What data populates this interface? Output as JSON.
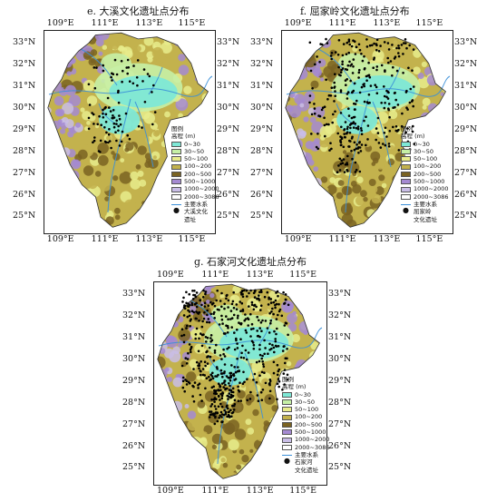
{
  "panels": [
    {
      "id": "e",
      "title": "e. 大溪文化遗址点分布",
      "site_label_lines": [
        "大溪文化",
        "遗址"
      ],
      "site_count": 95,
      "site_region": "central-west"
    },
    {
      "id": "f",
      "title": "f. 屈家岭文化遗址点分布",
      "site_label_lines": [
        "屈家岭",
        "文化遗址"
      ],
      "site_count": 330,
      "site_region": "north-central"
    },
    {
      "id": "g",
      "title": "g. 石家河文化遗址点分布",
      "site_label_lines": [
        "石家河",
        "文化遗址"
      ],
      "site_count": 560,
      "site_region": "north-central"
    }
  ],
  "lon_labels": [
    "109°E",
    "111°E",
    "113°E",
    "115°E"
  ],
  "lat_labels": [
    "33°N",
    "32°N",
    "31°N",
    "30°N",
    "29°N",
    "28°N",
    "27°N",
    "26°N",
    "25°N"
  ],
  "legend": {
    "title": "图例",
    "elevation_title": "高程 (m)",
    "classes": [
      {
        "label": "0~30",
        "color": "#7ee8d6"
      },
      {
        "label": "30~50",
        "color": "#c6f0a6"
      },
      {
        "label": "50~100",
        "color": "#e8ec8c"
      },
      {
        "label": "100~200",
        "color": "#c3b24d"
      },
      {
        "label": "200~500",
        "color": "#7a6322"
      },
      {
        "label": "500~1000",
        "color": "#a58ad2"
      },
      {
        "label": "1000~2000",
        "color": "#c9bde6"
      },
      {
        "label": "2000~3086",
        "color": "#ffffff"
      }
    ],
    "river_label": "主要水系",
    "river_color": "#3a8fd8"
  }
}
